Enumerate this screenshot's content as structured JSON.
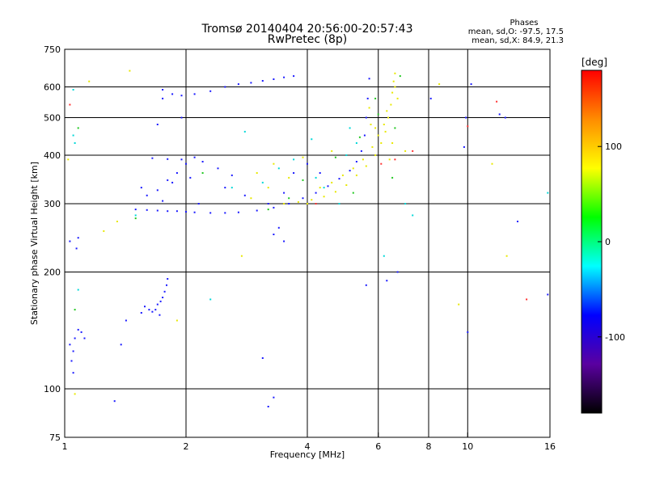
{
  "chart_data": {
    "type": "scatter",
    "title": "Tromsø 20140404 20:56:00-20:57:43",
    "subtitle": "RwPretec (8p)",
    "xlabel": "Frequency [MHz]",
    "ylabel": "Stationary phase Virtual Height [km]",
    "x_scale": "log",
    "y_scale": "log",
    "xlim": [
      1,
      16
    ],
    "ylim": [
      75,
      750
    ],
    "xticks": [
      1,
      2,
      4,
      6,
      8,
      10,
      16
    ],
    "yticks": [
      75,
      100,
      200,
      300,
      400,
      500,
      600,
      750
    ],
    "x_grid": [
      2,
      4,
      6,
      8,
      10
    ],
    "y_grid": [
      100,
      200,
      300,
      400,
      500,
      600
    ],
    "grid": true,
    "annotation": {
      "heading": "Phases",
      "line1": "mean, sd,O:  -97.5, 17.5",
      "line2": "mean, sd,X:  84.9, 21.3"
    },
    "colorbar": {
      "label": "[deg]",
      "range": [
        -180,
        180
      ],
      "ticks": [
        "100",
        "0",
        "-100"
      ],
      "tick_values": [
        100,
        0,
        -100
      ],
      "colors": [
        "#ff0000",
        "#ff8c00",
        "#ffff00",
        "#00ff00",
        "#00ffff",
        "#0000ff",
        "#5a00a0",
        "#000000"
      ]
    },
    "series": [
      {
        "mode": "O",
        "phase": -97.5,
        "color": "#1a1aff",
        "points": [
          [
            1.5,
            290
          ],
          [
            1.6,
            289
          ],
          [
            1.7,
            288
          ],
          [
            1.8,
            287
          ],
          [
            1.9,
            287
          ],
          [
            2.0,
            286
          ],
          [
            2.1,
            285
          ],
          [
            2.3,
            284
          ],
          [
            2.5,
            284
          ],
          [
            2.7,
            285
          ],
          [
            3.0,
            288
          ],
          [
            3.3,
            293
          ],
          [
            3.6,
            300
          ],
          [
            3.9,
            310
          ],
          [
            4.2,
            320
          ],
          [
            4.5,
            333
          ],
          [
            4.8,
            348
          ],
          [
            5.1,
            365
          ],
          [
            5.3,
            385
          ],
          [
            5.45,
            410
          ],
          [
            5.55,
            450
          ],
          [
            5.6,
            500
          ],
          [
            5.65,
            560
          ],
          [
            5.7,
            630
          ],
          [
            1.6,
            315
          ],
          [
            1.7,
            325
          ],
          [
            1.8,
            345
          ],
          [
            1.9,
            360
          ],
          [
            2.0,
            380
          ],
          [
            2.1,
            395
          ],
          [
            1.65,
            393
          ],
          [
            1.8,
            391
          ],
          [
            1.95,
            390
          ],
          [
            2.2,
            385
          ],
          [
            2.4,
            370
          ],
          [
            2.6,
            355
          ],
          [
            1.55,
            330
          ],
          [
            1.75,
            305
          ],
          [
            2.15,
            300
          ],
          [
            2.5,
            330
          ],
          [
            2.8,
            315
          ],
          [
            3.2,
            300
          ],
          [
            1.85,
            340
          ],
          [
            2.05,
            350
          ],
          [
            3.5,
            320
          ],
          [
            3.7,
            360
          ],
          [
            4.0,
            380
          ],
          [
            4.3,
            360
          ],
          [
            1.75,
            560
          ],
          [
            1.85,
            575
          ],
          [
            1.95,
            570
          ],
          [
            2.1,
            575
          ],
          [
            2.3,
            585
          ],
          [
            2.5,
            600
          ],
          [
            2.7,
            610
          ],
          [
            2.9,
            615
          ],
          [
            3.1,
            622
          ],
          [
            3.3,
            628
          ],
          [
            3.5,
            635
          ],
          [
            3.7,
            640
          ],
          [
            1.95,
            500
          ],
          [
            1.75,
            590
          ],
          [
            1.7,
            480
          ],
          [
            1.62,
            160
          ],
          [
            1.65,
            158
          ],
          [
            1.68,
            160
          ],
          [
            1.7,
            165
          ],
          [
            1.73,
            168
          ],
          [
            1.75,
            172
          ],
          [
            1.77,
            178
          ],
          [
            1.79,
            185
          ],
          [
            1.8,
            192
          ],
          [
            1.72,
            155
          ],
          [
            1.58,
            163
          ],
          [
            1.55,
            157
          ],
          [
            1.03,
            130
          ],
          [
            1.04,
            118
          ],
          [
            1.05,
            110
          ],
          [
            1.06,
            135
          ],
          [
            1.08,
            142
          ],
          [
            1.1,
            140
          ],
          [
            1.12,
            135
          ],
          [
            1.05,
            125
          ],
          [
            1.03,
            240
          ],
          [
            1.07,
            230
          ],
          [
            1.08,
            245
          ],
          [
            1.33,
            93
          ],
          [
            1.42,
            150
          ],
          [
            1.38,
            130
          ],
          [
            3.3,
            95
          ],
          [
            3.2,
            90
          ],
          [
            3.4,
            260
          ],
          [
            3.3,
            250
          ],
          [
            3.5,
            240
          ],
          [
            10.0,
            140
          ],
          [
            9.8,
            420
          ],
          [
            9.9,
            500
          ],
          [
            10.2,
            610
          ],
          [
            5.6,
            185
          ],
          [
            6.3,
            190
          ],
          [
            6.7,
            200
          ],
          [
            12.4,
            500
          ],
          [
            13.3,
            270
          ],
          [
            15.8,
            175
          ],
          [
            3.1,
            120
          ],
          [
            8.1,
            560
          ],
          [
            12.0,
            510
          ]
        ]
      },
      {
        "mode": "X",
        "phase": 84.9,
        "color": "#e8e800",
        "points": [
          [
            3.5,
            300
          ],
          [
            3.8,
            303
          ],
          [
            4.1,
            307
          ],
          [
            4.4,
            313
          ],
          [
            4.7,
            322
          ],
          [
            5.0,
            335
          ],
          [
            5.3,
            355
          ],
          [
            5.6,
            375
          ],
          [
            5.9,
            400
          ],
          [
            6.1,
            430
          ],
          [
            6.25,
            460
          ],
          [
            6.35,
            500
          ],
          [
            6.45,
            540
          ],
          [
            6.5,
            580
          ],
          [
            6.55,
            620
          ],
          [
            6.6,
            650
          ],
          [
            4.3,
            330
          ],
          [
            4.6,
            340
          ],
          [
            4.9,
            355
          ],
          [
            5.2,
            370
          ],
          [
            5.5,
            390
          ],
          [
            5.8,
            420
          ],
          [
            6.0,
            450
          ],
          [
            6.2,
            480
          ],
          [
            3.2,
            330
          ],
          [
            3.0,
            360
          ],
          [
            3.6,
            350
          ],
          [
            2.9,
            310
          ],
          [
            3.3,
            380
          ],
          [
            3.9,
            395
          ],
          [
            4.6,
            410
          ],
          [
            6.6,
            600
          ],
          [
            6.7,
            560
          ],
          [
            6.5,
            430
          ],
          [
            6.4,
            390
          ],
          [
            6.3,
            520
          ],
          [
            5.9,
            470
          ],
          [
            5.7,
            530
          ],
          [
            5.75,
            480
          ],
          [
            1.45,
            660
          ],
          [
            1.02,
            390
          ],
          [
            1.06,
            97
          ],
          [
            1.25,
            255
          ],
          [
            2.75,
            220
          ],
          [
            4.0,
            300
          ],
          [
            7.0,
            410
          ],
          [
            9.5,
            165
          ],
          [
            11.5,
            380
          ],
          [
            12.5,
            220
          ],
          [
            8.5,
            610
          ],
          [
            1.15,
            620
          ],
          [
            1.35,
            270
          ],
          [
            1.9,
            150
          ]
        ]
      },
      {
        "mode": "mixed",
        "color": "#00d8d8",
        "points": [
          [
            1.05,
            450
          ],
          [
            1.06,
            430
          ],
          [
            1.05,
            590
          ],
          [
            2.8,
            460
          ],
          [
            3.1,
            340
          ],
          [
            3.4,
            370
          ],
          [
            4.1,
            440
          ],
          [
            4.4,
            330
          ],
          [
            5.1,
            470
          ],
          [
            5.3,
            430
          ],
          [
            7.0,
            300
          ],
          [
            7.3,
            280
          ],
          [
            6.2,
            220
          ],
          [
            1.08,
            180
          ],
          [
            2.3,
            170
          ],
          [
            15.8,
            320
          ],
          [
            1.5,
            280
          ],
          [
            2.6,
            330
          ],
          [
            3.7,
            390
          ],
          [
            4.2,
            350
          ],
          [
            5.0,
            400
          ],
          [
            4.8,
            300
          ]
        ]
      },
      {
        "mode": "mixed",
        "color": "#20c820",
        "points": [
          [
            1.08,
            470
          ],
          [
            1.06,
            160
          ],
          [
            1.5,
            275
          ],
          [
            3.6,
            310
          ],
          [
            3.9,
            345
          ],
          [
            4.7,
            395
          ],
          [
            5.4,
            445
          ],
          [
            6.0,
            510
          ],
          [
            6.6,
            470
          ],
          [
            6.5,
            350
          ],
          [
            5.2,
            320
          ],
          [
            2.2,
            360
          ],
          [
            3.2,
            290
          ],
          [
            6.8,
            640
          ],
          [
            5.9,
            560
          ]
        ]
      },
      {
        "mode": "mixed",
        "color": "#ff3030",
        "points": [
          [
            14.0,
            170
          ],
          [
            11.8,
            550
          ],
          [
            7.3,
            410
          ],
          [
            4.2,
            300
          ],
          [
            1.03,
            540
          ],
          [
            6.1,
            380
          ],
          [
            10.0,
            475
          ],
          [
            6.6,
            390
          ]
        ]
      }
    ]
  }
}
